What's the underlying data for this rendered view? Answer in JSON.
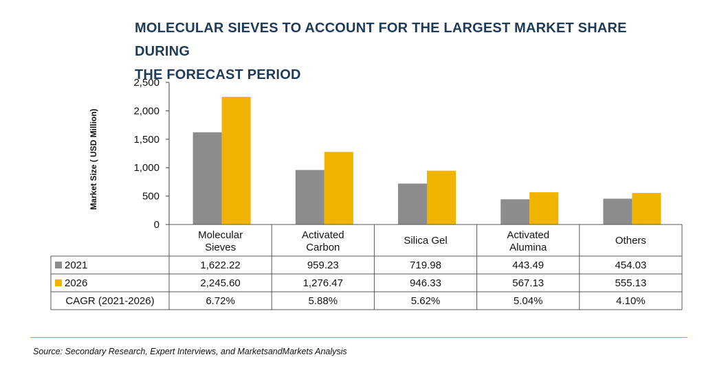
{
  "title_lines": [
    "MOLECULAR SIEVES TO ACCOUNT FOR THE LARGEST MARKET SHARE DURING",
    "THE FORECAST PERIOD"
  ],
  "source": "Source: Secondary Research, Expert Interviews, and MarketsandMarkets Analysis",
  "colors": {
    "s2021": "#8c8c8c",
    "s2026": "#f0b400",
    "title": "#1f3b5a",
    "rule": "#c9a227"
  },
  "chart_data": {
    "type": "bar",
    "title": "MOLECULAR SIEVES TO ACCOUNT FOR THE LARGEST MARKET SHARE DURING THE FORECAST PERIOD",
    "ylabel": "Market Size ( USD Million)",
    "xlabel": "",
    "ylim": [
      0,
      2500
    ],
    "yticks": [
      "0",
      "500",
      "1,000",
      "1,500",
      "2,000",
      "2,500"
    ],
    "ytick_values": [
      0,
      500,
      1000,
      1500,
      2000,
      2500
    ],
    "categories": [
      [
        "Molecular",
        "Sieves"
      ],
      [
        "Activated",
        "Carbon"
      ],
      [
        "Silica Gel"
      ],
      [
        "Activated",
        "Alumina"
      ],
      [
        "Others"
      ]
    ],
    "series": [
      {
        "name": "2021",
        "values": [
          1622.22,
          959.23,
          719.98,
          443.49,
          454.03
        ],
        "labels": [
          "1,622.22",
          "959.23",
          "719.98",
          "443.49",
          "454.03"
        ]
      },
      {
        "name": "2026",
        "values": [
          2245.6,
          1276.47,
          946.33,
          567.13,
          555.13
        ],
        "labels": [
          "2,245.60",
          "1,276.47",
          "946.33",
          "567.13",
          "555.13"
        ]
      }
    ],
    "cagr": {
      "label": "CAGR (2021-2026)",
      "values": [
        "6.72%",
        "5.88%",
        "5.62%",
        "5.04%",
        "4.10%"
      ]
    },
    "grid": false,
    "legend": "table"
  }
}
